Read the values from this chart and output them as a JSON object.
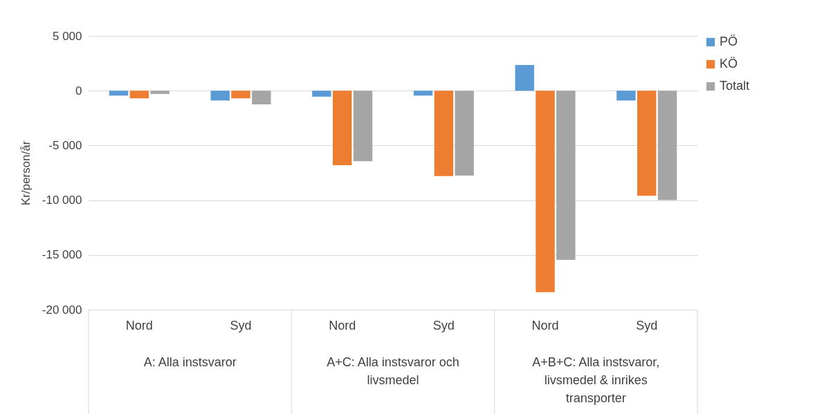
{
  "chart_data": {
    "type": "bar",
    "ylabel": "Kr/person/år",
    "categories": [
      "Nord",
      "Syd",
      "Nord",
      "Syd",
      "Nord",
      "Syd"
    ],
    "series": [
      {
        "name": "PÖ",
        "color": "#5b9bd5",
        "values": [
          -450,
          -900,
          -550,
          -450,
          2350,
          -900
        ]
      },
      {
        "name": "KÖ",
        "color": "#ed7d31",
        "values": [
          -700,
          -700,
          -6800,
          -7800,
          -18400,
          -9600
        ]
      },
      {
        "name": "Totalt",
        "color": "#a5a5a5",
        "values": [
          -300,
          -1250,
          -6450,
          -7750,
          -15450,
          -10000
        ]
      }
    ],
    "ylim": [
      -20000,
      5000
    ],
    "yticks": [
      {
        "value": -20000,
        "label": "-20 000"
      },
      {
        "value": -15000,
        "label": "-15 000"
      },
      {
        "value": -10000,
        "label": "-10 000"
      },
      {
        "value": -5000,
        "label": "-5 000"
      },
      0,
      {
        "value": 5000,
        "label": "5 000"
      }
    ],
    "grid": "y",
    "legend": "right",
    "annotations": [
      "A: Alla instsvaror",
      "A+C: Alla instsvaror och livsmedel",
      "A+B+C: Alla instsvaror, livsmedel & inrikes transporter"
    ]
  }
}
